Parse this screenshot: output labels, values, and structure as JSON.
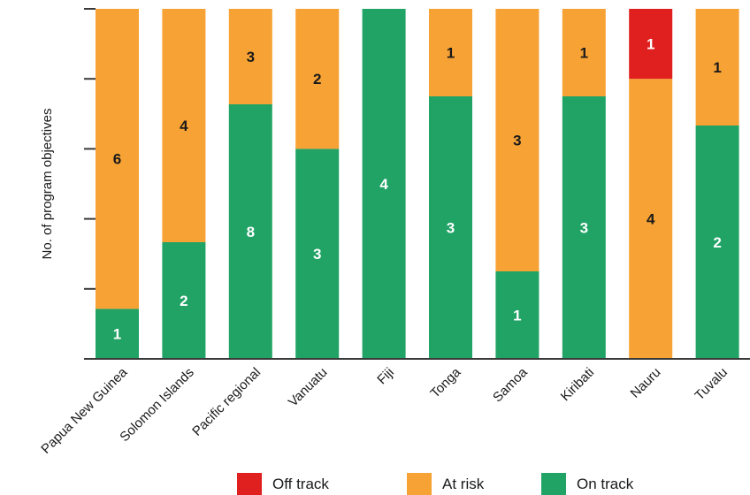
{
  "chart_data": {
    "type": "bar",
    "stacked": true,
    "normalized": true,
    "ylabel": "No. of program objectives",
    "categories": [
      "Papua New Guinea",
      "Solomon Islands",
      "Pacific regional",
      "Vanuatu",
      "Fiji",
      "Tonga",
      "Samoa",
      "Kiribati",
      "Nauru",
      "Tuvalu"
    ],
    "series": [
      {
        "name": "On track",
        "color": "#21a366",
        "label_color": "#ffffff",
        "values": [
          1,
          2,
          8,
          3,
          4,
          3,
          1,
          3,
          0,
          2
        ]
      },
      {
        "name": "At risk",
        "color": "#f7a234",
        "label_color": "#1a1a1a",
        "values": [
          6,
          4,
          3,
          2,
          0,
          1,
          3,
          1,
          4,
          1
        ]
      },
      {
        "name": "Off track",
        "color": "#e0201f",
        "label_color": "#ffffff",
        "values": [
          0,
          0,
          0,
          0,
          0,
          0,
          0,
          0,
          1,
          0
        ]
      }
    ],
    "legend": {
      "position": "bottom",
      "order": [
        "Off track",
        "At risk",
        "On track"
      ]
    },
    "grid": false
  }
}
